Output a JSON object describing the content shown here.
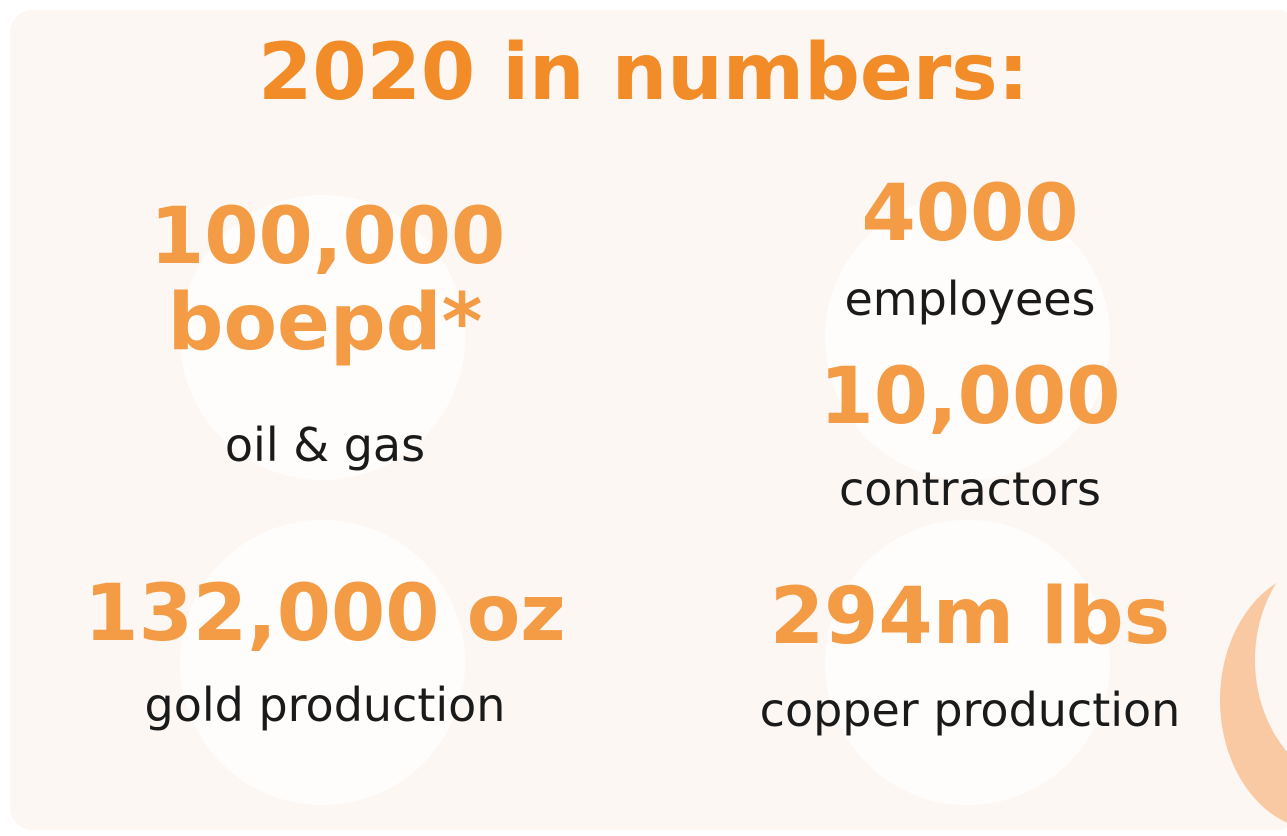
{
  "title": "2020 in numbers:",
  "stats": [
    {
      "value": "100,000 boepd*",
      "label": "oil & gas"
    },
    {
      "value": "4000",
      "label": "employees"
    },
    {
      "value": "10,000",
      "label": "contractors"
    },
    {
      "value": "132,000 oz",
      "label": "gold production"
    },
    {
      "value": "294m lbs",
      "label": "copper production"
    }
  ]
}
